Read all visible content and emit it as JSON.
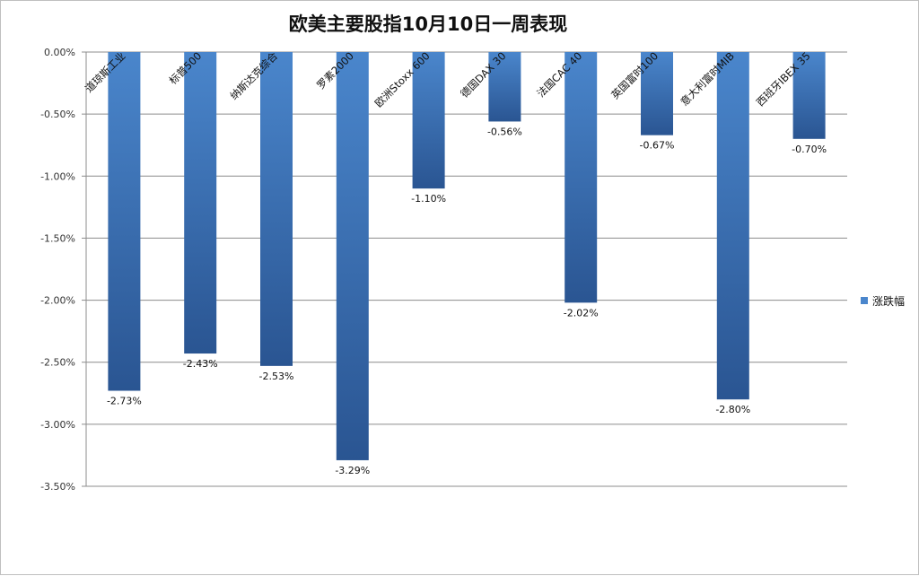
{
  "chart_data": {
    "type": "bar",
    "title": "欧美主要股指10月10日一周表现",
    "categories": [
      "道琼斯工业",
      "标普500",
      "纳斯达克综合",
      "罗素2000",
      "欧洲Stoxx 600",
      "德国DAX 30",
      "法国CAC 40",
      "英国富时100",
      "意大利富时MIB",
      "西班牙IBEX 35"
    ],
    "series": [
      {
        "name": "涨跌幅",
        "values": [
          -2.73,
          -2.43,
          -2.53,
          -3.29,
          -1.1,
          -0.56,
          -2.02,
          -0.67,
          -2.8,
          -0.7
        ],
        "labels": [
          "-2.73%",
          "-2.43%",
          "-2.53%",
          "-3.29%",
          "-1.10%",
          "-0.56%",
          "-2.02%",
          "-0.67%",
          "-2.80%",
          "-0.70%"
        ]
      }
    ],
    "ylim": [
      -3.5,
      0
    ],
    "yticks": [
      0,
      -0.5,
      -1.0,
      -1.5,
      -2.0,
      -2.5,
      -3.0,
      -3.5
    ],
    "ytick_labels": [
      "0.00%",
      "-0.50%",
      "-1.00%",
      "-1.50%",
      "-2.00%",
      "-2.50%",
      "-3.00%",
      "-3.50%"
    ],
    "grid": true,
    "legend": "right",
    "bar_color_top": "#4a86cc",
    "bar_color_bottom": "#2a5592"
  }
}
